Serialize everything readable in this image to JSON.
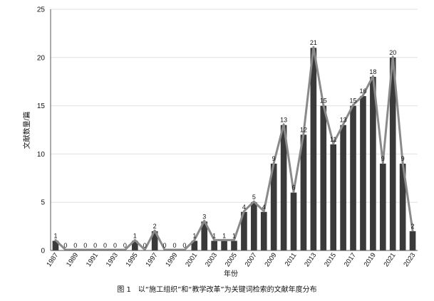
{
  "chart_data": {
    "type": "bar",
    "overlay": "line",
    "categories": [
      "1987",
      "1988",
      "1989",
      "1990",
      "1991",
      "1992",
      "1993",
      "1994",
      "1995",
      "1996",
      "1997",
      "1998",
      "1999",
      "2000",
      "2001",
      "2002",
      "2003",
      "2004",
      "2005",
      "2006",
      "2007",
      "2008",
      "2009",
      "2010",
      "2011",
      "2012",
      "2013",
      "2014",
      "2015",
      "2016",
      "2017",
      "2018",
      "2019",
      "2020",
      "2021",
      "2022",
      "2023"
    ],
    "tick_labels": [
      "1987",
      "1989",
      "1991",
      "1993",
      "1995",
      "1997",
      "1999",
      "2001",
      "2003",
      "2005",
      "2007",
      "2009",
      "2011",
      "2013",
      "2015",
      "2017",
      "2019",
      "2021",
      "2023"
    ],
    "values": [
      1,
      0,
      0,
      0,
      0,
      0,
      0,
      0,
      1,
      0,
      2,
      0,
      0,
      0,
      1,
      3,
      1,
      1,
      1,
      4,
      5,
      4,
      9,
      13,
      6,
      12,
      21,
      15,
      11,
      13,
      15,
      16,
      18,
      9,
      20,
      9,
      2
    ],
    "xlabel": "年份",
    "ylabel": "文献数量/篇",
    "ylim": [
      0,
      25
    ],
    "yticks": [
      0,
      5,
      10,
      15,
      20,
      25
    ],
    "grid": true,
    "legend": "none",
    "colors": {
      "bar": "#3a3a3a",
      "line": "#8a8a8a",
      "grid": "#e0e0e0",
      "axis": "#555555"
    }
  },
  "caption": "图 1　以“施工组织”和“教学改革”为关键词检索的文献年度分布"
}
